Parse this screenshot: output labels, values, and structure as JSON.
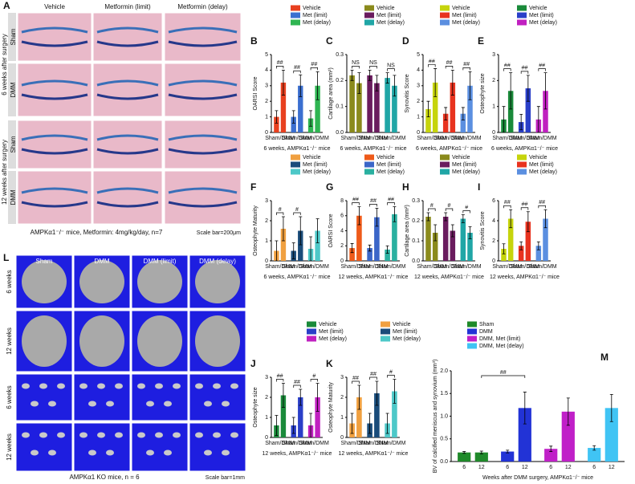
{
  "panel_a": {
    "letter": "A",
    "columns": [
      "Vehicle",
      "Metformin (limit)",
      "Metformin (delay)"
    ],
    "rows": [
      "Sham",
      "DMM",
      "Sham",
      "DMM"
    ],
    "timepoints": [
      "6 weeks after surgery",
      "12 weeks after surgery"
    ],
    "caption": "AMPKα1⁻/⁻ mice, Metformin: 4mg/kg/day, n=7",
    "scale": "Scale bar=200μm"
  },
  "panel_l": {
    "letter": "L",
    "columns": [
      "Sham",
      "DMM",
      "DMM (limit)",
      "DMM (delay)"
    ],
    "rows": [
      "6 weeks",
      "12 weeks",
      "6 weeks",
      "12 weeks"
    ],
    "caption": "AMPKα1 KO mice, n = 6",
    "scale": "Scale bar=1mm"
  },
  "chart_data": [
    {
      "type": "bar",
      "letter": "B",
      "ylabel": "OARSI Score",
      "xlabel": "6 weeks, AMPKα1⁻/⁻ mice",
      "ylim": [
        0,
        5
      ],
      "yticks": [
        0,
        1,
        2,
        3,
        4,
        5
      ],
      "group_labels": [
        "Sham/DMM",
        "Sham/DMM",
        "Sham/DMM"
      ],
      "annotations": [
        "##",
        "##",
        "##"
      ],
      "series": [
        {
          "name": "Vehicle",
          "color": "#e8401f",
          "values": [
            1,
            3.2
          ],
          "errors": [
            0.4,
            0.8
          ]
        },
        {
          "name": "Met (limit)",
          "color": "#3b6fd0",
          "values": [
            1,
            3
          ],
          "errors": [
            0.4,
            0.7
          ]
        },
        {
          "name": "Met (delay)",
          "color": "#2fb552",
          "values": [
            0.9,
            3
          ],
          "errors": [
            0.5,
            0.9
          ]
        }
      ]
    },
    {
      "type": "bar",
      "letter": "C",
      "ylabel": "Cartilage area (mm²)",
      "xlabel": "6 weeks, AMPKα1⁻/⁻ mice",
      "ylim": [
        0,
        0.3
      ],
      "yticks": [
        {
          "value": 0,
          "label": "0.0"
        },
        0.1,
        0.2,
        0.3
      ],
      "group_labels": [
        "Sham/DMM",
        "Sham/DMM",
        "Sham/DMM"
      ],
      "annotations": [
        "NS",
        "NS",
        "NS"
      ],
      "series": [
        {
          "name": "Vehicle",
          "color": "#8a8a1c",
          "values": [
            0.22,
            0.19
          ],
          "errors": [
            0.02,
            0.04
          ]
        },
        {
          "name": "Met (limit)",
          "color": "#6a1c5e",
          "values": [
            0.22,
            0.19
          ],
          "errors": [
            0.02,
            0.03
          ]
        },
        {
          "name": "Met (delay)",
          "color": "#20a6a6",
          "values": [
            0.21,
            0.18
          ],
          "errors": [
            0.02,
            0.04
          ]
        }
      ]
    },
    {
      "type": "bar",
      "letter": "D",
      "ylabel": "Synovitis Score",
      "xlabel": "6 weeks, AMPKα1⁻/⁻ mice",
      "ylim": [
        0,
        5
      ],
      "yticks": [
        0,
        1,
        2,
        3,
        4,
        5
      ],
      "group_labels": [
        "Sham/DMM",
        "Sham/DMM",
        "Sham/DMM"
      ],
      "annotations": [
        "##",
        "##",
        "##"
      ],
      "series": [
        {
          "name": "Vehicle",
          "color": "#c6d40c",
          "values": [
            1.5,
            3.2
          ],
          "errors": [
            0.5,
            0.9
          ]
        },
        {
          "name": "Met (limit)",
          "color": "#e8331f",
          "values": [
            1.2,
            3.2
          ],
          "errors": [
            0.4,
            0.8
          ]
        },
        {
          "name": "Met (delay)",
          "color": "#5b8fe0",
          "values": [
            1.2,
            3
          ],
          "errors": [
            0.4,
            0.9
          ]
        }
      ]
    },
    {
      "type": "bar",
      "letter": "E",
      "ylabel": "Osteophyte size",
      "xlabel": "6 weeks, AMPKα1⁻/⁻ mice",
      "ylim": [
        0,
        3
      ],
      "yticks": [
        0,
        1,
        2,
        3
      ],
      "group_labels": [
        "Sham/DMM",
        "Sham/DMM",
        "Sham/DMM"
      ],
      "annotations": [
        "##",
        "##",
        "##"
      ],
      "series": [
        {
          "name": "Vehicle",
          "color": "#1a8a3a",
          "values": [
            0.5,
            1.6
          ],
          "errors": [
            0.5,
            0.7
          ]
        },
        {
          "name": "Met (limit)",
          "color": "#2a3fc8",
          "values": [
            0.4,
            1.7
          ],
          "errors": [
            0.3,
            0.5
          ]
        },
        {
          "name": "Met (delay)",
          "color": "#c020c0",
          "values": [
            0.5,
            1.6
          ],
          "errors": [
            0.5,
            0.7
          ]
        }
      ]
    },
    {
      "type": "bar",
      "letter": "F",
      "ylabel": "Osteophyte Maturity",
      "xlabel": "6 weeks, AMPKα1⁻/⁻ mice",
      "ylim": [
        0,
        3
      ],
      "yticks": [
        0,
        1,
        2,
        3
      ],
      "group_labels": [
        "Sham/DMM",
        "Sham/DMM",
        "Sham/DMM"
      ],
      "annotations": [
        "#",
        "#",
        null
      ],
      "series": [
        {
          "name": "Vehicle",
          "color": "#f0a040",
          "values": [
            0.5,
            1.6
          ],
          "errors": [
            0.5,
            0.6
          ]
        },
        {
          "name": "Met (limit)",
          "color": "#1a4c7a",
          "values": [
            0.5,
            1.5
          ],
          "errors": [
            0.4,
            0.7
          ]
        },
        {
          "name": "Met (delay)",
          "color": "#4dc8c8",
          "values": [
            0.6,
            1.5
          ],
          "errors": [
            0.6,
            0.6
          ]
        }
      ]
    },
    {
      "type": "bar",
      "letter": "G",
      "ylabel": "OARSI Score",
      "xlabel": "12 weeks, AMPKα1⁻/⁻ mice",
      "ylim": [
        0,
        8
      ],
      "yticks": [
        0,
        2,
        4,
        6,
        8
      ],
      "group_labels": [
        "Sham/DMM",
        "Sham/DMM",
        "Sham/DMM"
      ],
      "annotations": [
        "##",
        "##",
        "##"
      ],
      "series": [
        {
          "name": "Vehicle",
          "color": "#ee5a1a",
          "values": [
            1.7,
            6
          ],
          "errors": [
            0.6,
            1.2
          ]
        },
        {
          "name": "Met (limit)",
          "color": "#3b66c8",
          "values": [
            1.7,
            5.8
          ],
          "errors": [
            0.4,
            1.2
          ]
        },
        {
          "name": "Met (delay)",
          "color": "#2ab0a0",
          "values": [
            1.5,
            6.2
          ],
          "errors": [
            0.5,
            1
          ]
        }
      ]
    },
    {
      "type": "bar",
      "letter": "H",
      "ylabel": "Cartilage area (mm²)",
      "xlabel": "12 weeks, AMPKα1⁻/⁻ mice",
      "ylim": [
        0,
        0.3
      ],
      "yticks": [
        {
          "value": 0,
          "label": "0.0"
        },
        0.1,
        0.2,
        0.3
      ],
      "group_labels": [
        "Sham/DMM",
        "Sham/DMM",
        "Sham/DMM"
      ],
      "annotations": [
        "#",
        "#",
        "#"
      ],
      "series": [
        {
          "name": "Vehicle",
          "color": "#8a8a1c",
          "values": [
            0.22,
            0.14
          ],
          "errors": [
            0.02,
            0.04
          ]
        },
        {
          "name": "Met (limit)",
          "color": "#6a1c5e",
          "values": [
            0.22,
            0.15
          ],
          "errors": [
            0.02,
            0.03
          ]
        },
        {
          "name": "Met (delay)",
          "color": "#20a6a6",
          "values": [
            0.21,
            0.14
          ],
          "errors": [
            0.02,
            0.03
          ]
        }
      ]
    },
    {
      "type": "bar",
      "letter": "I",
      "ylabel": "Synovitis Score",
      "xlabel": "12 weeks, AMPKα1⁻/⁻ mice",
      "ylim": [
        0,
        6
      ],
      "yticks": [
        0,
        2,
        4,
        6
      ],
      "group_labels": [
        "Sham/DMM",
        "Sham/DMM",
        "Sham/DMM"
      ],
      "annotations": [
        "##",
        "##",
        "##"
      ],
      "series": [
        {
          "name": "Vehicle",
          "color": "#c6d40c",
          "values": [
            1.2,
            4.2
          ],
          "errors": [
            0.5,
            0.9
          ]
        },
        {
          "name": "Met (limit)",
          "color": "#e8331f",
          "values": [
            1.5,
            3.9
          ],
          "errors": [
            0.4,
            1
          ]
        },
        {
          "name": "Met (delay)",
          "color": "#5b8fe0",
          "values": [
            1.5,
            4.2
          ],
          "errors": [
            0.4,
            0.9
          ]
        }
      ]
    },
    {
      "type": "bar",
      "letter": "J",
      "ylabel": "Osteophyte size",
      "xlabel": "12 weeks, AMPKα1⁻/⁻ mice",
      "ylim": [
        0,
        3
      ],
      "yticks": [
        0,
        1,
        2,
        3
      ],
      "group_labels": [
        "Sham/DMM",
        "Sham/DMM",
        "Sham/DMM"
      ],
      "annotations": [
        "##",
        "##",
        "#"
      ],
      "series": [
        {
          "name": "Vehicle",
          "color": "#1a8a3a",
          "values": [
            0.6,
            2.1
          ],
          "errors": [
            0.5,
            0.6
          ]
        },
        {
          "name": "Met (limit)",
          "color": "#2a3fc8",
          "values": [
            0.6,
            2
          ],
          "errors": [
            0.4,
            0.4
          ]
        },
        {
          "name": "Met (delay)",
          "color": "#c020c0",
          "values": [
            0.6,
            2
          ],
          "errors": [
            0.6,
            0.7
          ]
        }
      ]
    },
    {
      "type": "bar",
      "letter": "K",
      "ylabel": "Osteophyte Maturity",
      "xlabel": "12 weeks, AMPKα1⁻/⁻ mice",
      "ylim": [
        0,
        3
      ],
      "yticks": [
        0,
        1,
        2,
        3
      ],
      "group_labels": [
        "Sham/DMM",
        "Sham/DMM",
        "Sham/DMM"
      ],
      "annotations": [
        "##",
        "##",
        "#"
      ],
      "series": [
        {
          "name": "Vehicle",
          "color": "#f0a040",
          "values": [
            0.7,
            2
          ],
          "errors": [
            0.5,
            0.6
          ]
        },
        {
          "name": "Met (limit)",
          "color": "#1a4c7a",
          "values": [
            0.7,
            2.2
          ],
          "errors": [
            0.5,
            0.6
          ]
        },
        {
          "name": "Met (delay)",
          "color": "#4dc8c8",
          "values": [
            0.7,
            2.3
          ],
          "errors": [
            0.5,
            0.6
          ]
        }
      ]
    },
    {
      "type": "bar",
      "letter": "M",
      "ylabel": "BV of calcified meniscus and synovium (mm³)",
      "xlabel": "Weeks after DMM surgery, AMPKα1⁻/⁻ mice",
      "ylim": [
        0,
        2
      ],
      "yticks": [
        {
          "value": 0,
          "label": "0.0"
        },
        0.5,
        {
          "value": 1,
          "label": "1.0"
        },
        1.5,
        {
          "value": 2,
          "label": "2.0"
        }
      ],
      "categories": [
        "6",
        "12"
      ],
      "annotation": "##",
      "series": [
        {
          "name": "Sham",
          "color": "#1f8a2a",
          "values": [
            0.2,
            0.2
          ],
          "errors": [
            0.02,
            0.03
          ]
        },
        {
          "name": "DMM",
          "color": "#2233d6",
          "values": [
            0.22,
            1.18
          ],
          "errors": [
            0.03,
            0.35
          ]
        },
        {
          "name": "DMM, Met (limit)",
          "color": "#c020c8",
          "values": [
            0.28,
            1.1
          ],
          "errors": [
            0.06,
            0.3
          ]
        },
        {
          "name": "DMM, Met (delay)",
          "color": "#40c4f4",
          "values": [
            0.3,
            1.18
          ],
          "errors": [
            0.05,
            0.3
          ]
        }
      ]
    }
  ]
}
